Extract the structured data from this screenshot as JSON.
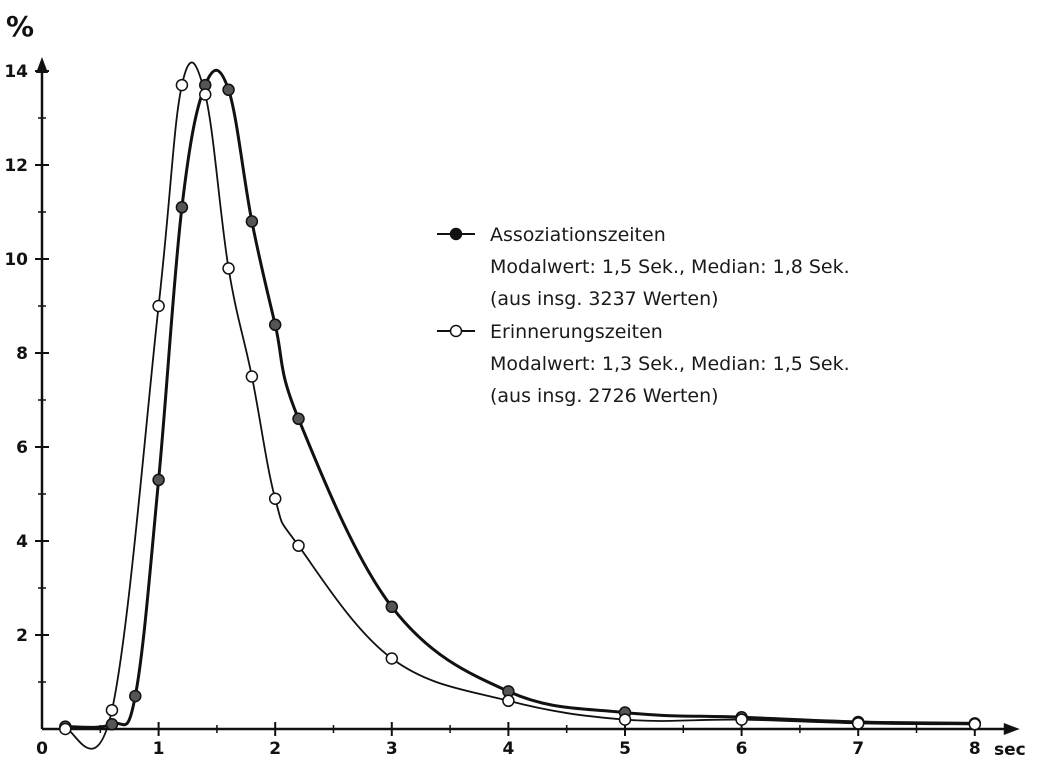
{
  "chart_data": {
    "type": "line",
    "y_unit": "%",
    "x_unit": "sec",
    "xlim": [
      0,
      8.3
    ],
    "ylim": [
      0,
      14
    ],
    "x_ticks": [
      0,
      1,
      2,
      3,
      4,
      5,
      6,
      7,
      8
    ],
    "y_ticks": [
      2,
      4,
      6,
      8,
      10,
      12,
      14
    ],
    "grid": false,
    "legend_position": "upper-right",
    "series": [
      {
        "name": "Assoziationszeiten",
        "marker": "filled-circle",
        "color": "#555555",
        "line_color": "#111111",
        "points": [
          {
            "x": 0.2,
            "y": 0.05
          },
          {
            "x": 0.6,
            "y": 0.1
          },
          {
            "x": 0.8,
            "y": 0.7
          },
          {
            "x": 1.0,
            "y": 5.3
          },
          {
            "x": 1.2,
            "y": 11.1
          },
          {
            "x": 1.4,
            "y": 13.7
          },
          {
            "x": 1.6,
            "y": 13.6
          },
          {
            "x": 1.8,
            "y": 10.8
          },
          {
            "x": 2.0,
            "y": 8.6
          },
          {
            "x": 2.2,
            "y": 6.6
          },
          {
            "x": 3.0,
            "y": 2.6
          },
          {
            "x": 4.0,
            "y": 0.8
          },
          {
            "x": 5.0,
            "y": 0.35
          },
          {
            "x": 6.0,
            "y": 0.25
          },
          {
            "x": 7.0,
            "y": 0.15
          },
          {
            "x": 8.0,
            "y": 0.12
          }
        ]
      },
      {
        "name": "Erinnerungszeiten",
        "marker": "open-circle",
        "color": "#ffffff",
        "line_color": "#111111",
        "points": [
          {
            "x": 0.2,
            "y": 0.0
          },
          {
            "x": 0.6,
            "y": 0.4
          },
          {
            "x": 1.0,
            "y": 9.0
          },
          {
            "x": 1.2,
            "y": 13.7
          },
          {
            "x": 1.4,
            "y": 13.5
          },
          {
            "x": 1.6,
            "y": 9.8
          },
          {
            "x": 1.8,
            "y": 7.5
          },
          {
            "x": 2.0,
            "y": 4.9
          },
          {
            "x": 2.2,
            "y": 3.9
          },
          {
            "x": 3.0,
            "y": 1.5
          },
          {
            "x": 4.0,
            "y": 0.6
          },
          {
            "x": 5.0,
            "y": 0.2
          },
          {
            "x": 6.0,
            "y": 0.2
          },
          {
            "x": 7.0,
            "y": 0.12
          },
          {
            "x": 8.0,
            "y": 0.1
          }
        ]
      }
    ],
    "legend": [
      {
        "name": "Assoziationszeiten",
        "line2": "Modalwert: 1,5 Sek., Median: 1,8 Sek.",
        "line3": "(aus insg. 3237 Werten)"
      },
      {
        "name": "Erinnerungszeiten",
        "line2": "Modalwert: 1,3 Sek., Median: 1,5 Sek.",
        "line3": "(aus insg. 2726 Werten)"
      }
    ]
  }
}
